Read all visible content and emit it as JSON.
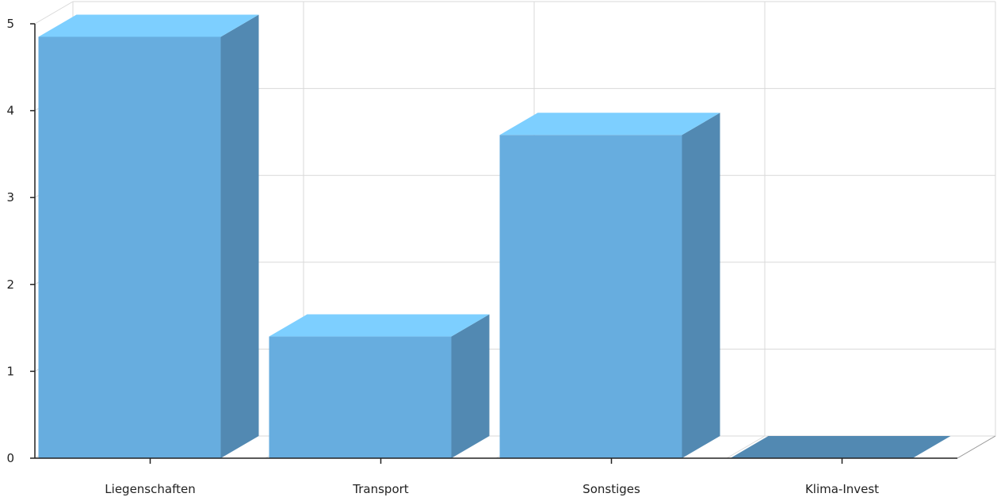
{
  "chart_data": {
    "type": "bar",
    "three_d": true,
    "categories": [
      "Liegenschaften",
      "Transport",
      "Sonstiges",
      "Klima-Invest"
    ],
    "values": [
      4.85,
      1.4,
      3.72,
      0
    ],
    "ylim": [
      0,
      5
    ],
    "yticks": [
      "0",
      "1",
      "2",
      "3",
      "4",
      "5"
    ],
    "grid": true,
    "legend": "none",
    "title": "",
    "xlabel": "",
    "ylabel": "",
    "colors": {
      "front": "#67ADDF",
      "top": "#7DCFFF",
      "side": "#5289B2",
      "grid": "#D9D9D9",
      "axis": "#222222"
    }
  }
}
